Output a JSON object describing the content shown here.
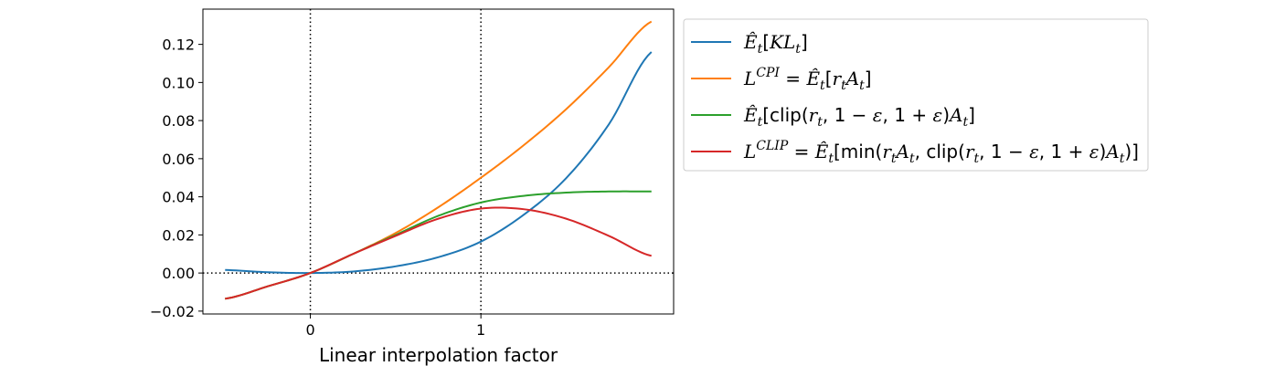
{
  "chart_data": {
    "type": "line",
    "title": "",
    "xlabel": "Linear interpolation factor",
    "ylabel": "",
    "xlim": [
      -0.63,
      2.13
    ],
    "ylim": [
      -0.0215,
      0.1385
    ],
    "x_ticks": [
      0,
      1
    ],
    "x_tick_labels": [
      "0",
      "1"
    ],
    "y_ticks": [
      -0.02,
      0.0,
      0.02,
      0.04,
      0.06,
      0.08,
      0.1,
      0.12
    ],
    "y_tick_labels": [
      "−0.02",
      "0.00",
      "0.02",
      "0.04",
      "0.06",
      "0.08",
      "0.10",
      "0.12"
    ],
    "vertical_reference_lines": [
      0,
      1
    ],
    "horizontal_reference_lines": [
      0
    ],
    "grid": false,
    "legend_position": "outside-right-top",
    "x": [
      -0.5,
      -0.25,
      0.0,
      0.25,
      0.5,
      0.75,
      1.0,
      1.25,
      1.5,
      1.75,
      2.0
    ],
    "series": [
      {
        "name": "E_t[KL_t]",
        "color": "#1f77b4",
        "values": [
          0.0016,
          0.0004,
          0.0,
          0.0008,
          0.0035,
          0.0083,
          0.0165,
          0.0305,
          0.0498,
          0.078,
          0.116
        ]
      },
      {
        "name": "L^CPI = E_t[r_t A_t]",
        "color": "#ff7f0e",
        "values": [
          -0.0135,
          -0.007,
          0.0,
          0.01,
          0.021,
          0.0345,
          0.05,
          0.067,
          0.086,
          0.108,
          0.132
        ]
      },
      {
        "name": "E_t[clip(r_t, 1-ε, 1+ε)A_t]",
        "color": "#2ca02c",
        "values": [
          -0.0135,
          -0.007,
          0.0,
          0.01,
          0.02,
          0.03,
          0.037,
          0.0405,
          0.0422,
          0.0428,
          0.0428
        ]
      },
      {
        "name": "L^CLIP = E_t[min(r_t A_t, clip(r_t, 1-ε, 1+ε)A_t)]",
        "color": "#d62728",
        "values": [
          -0.0135,
          -0.007,
          0.0,
          0.01,
          0.0195,
          0.0285,
          0.0338,
          0.0335,
          0.0285,
          0.0195,
          0.009
        ]
      }
    ]
  }
}
